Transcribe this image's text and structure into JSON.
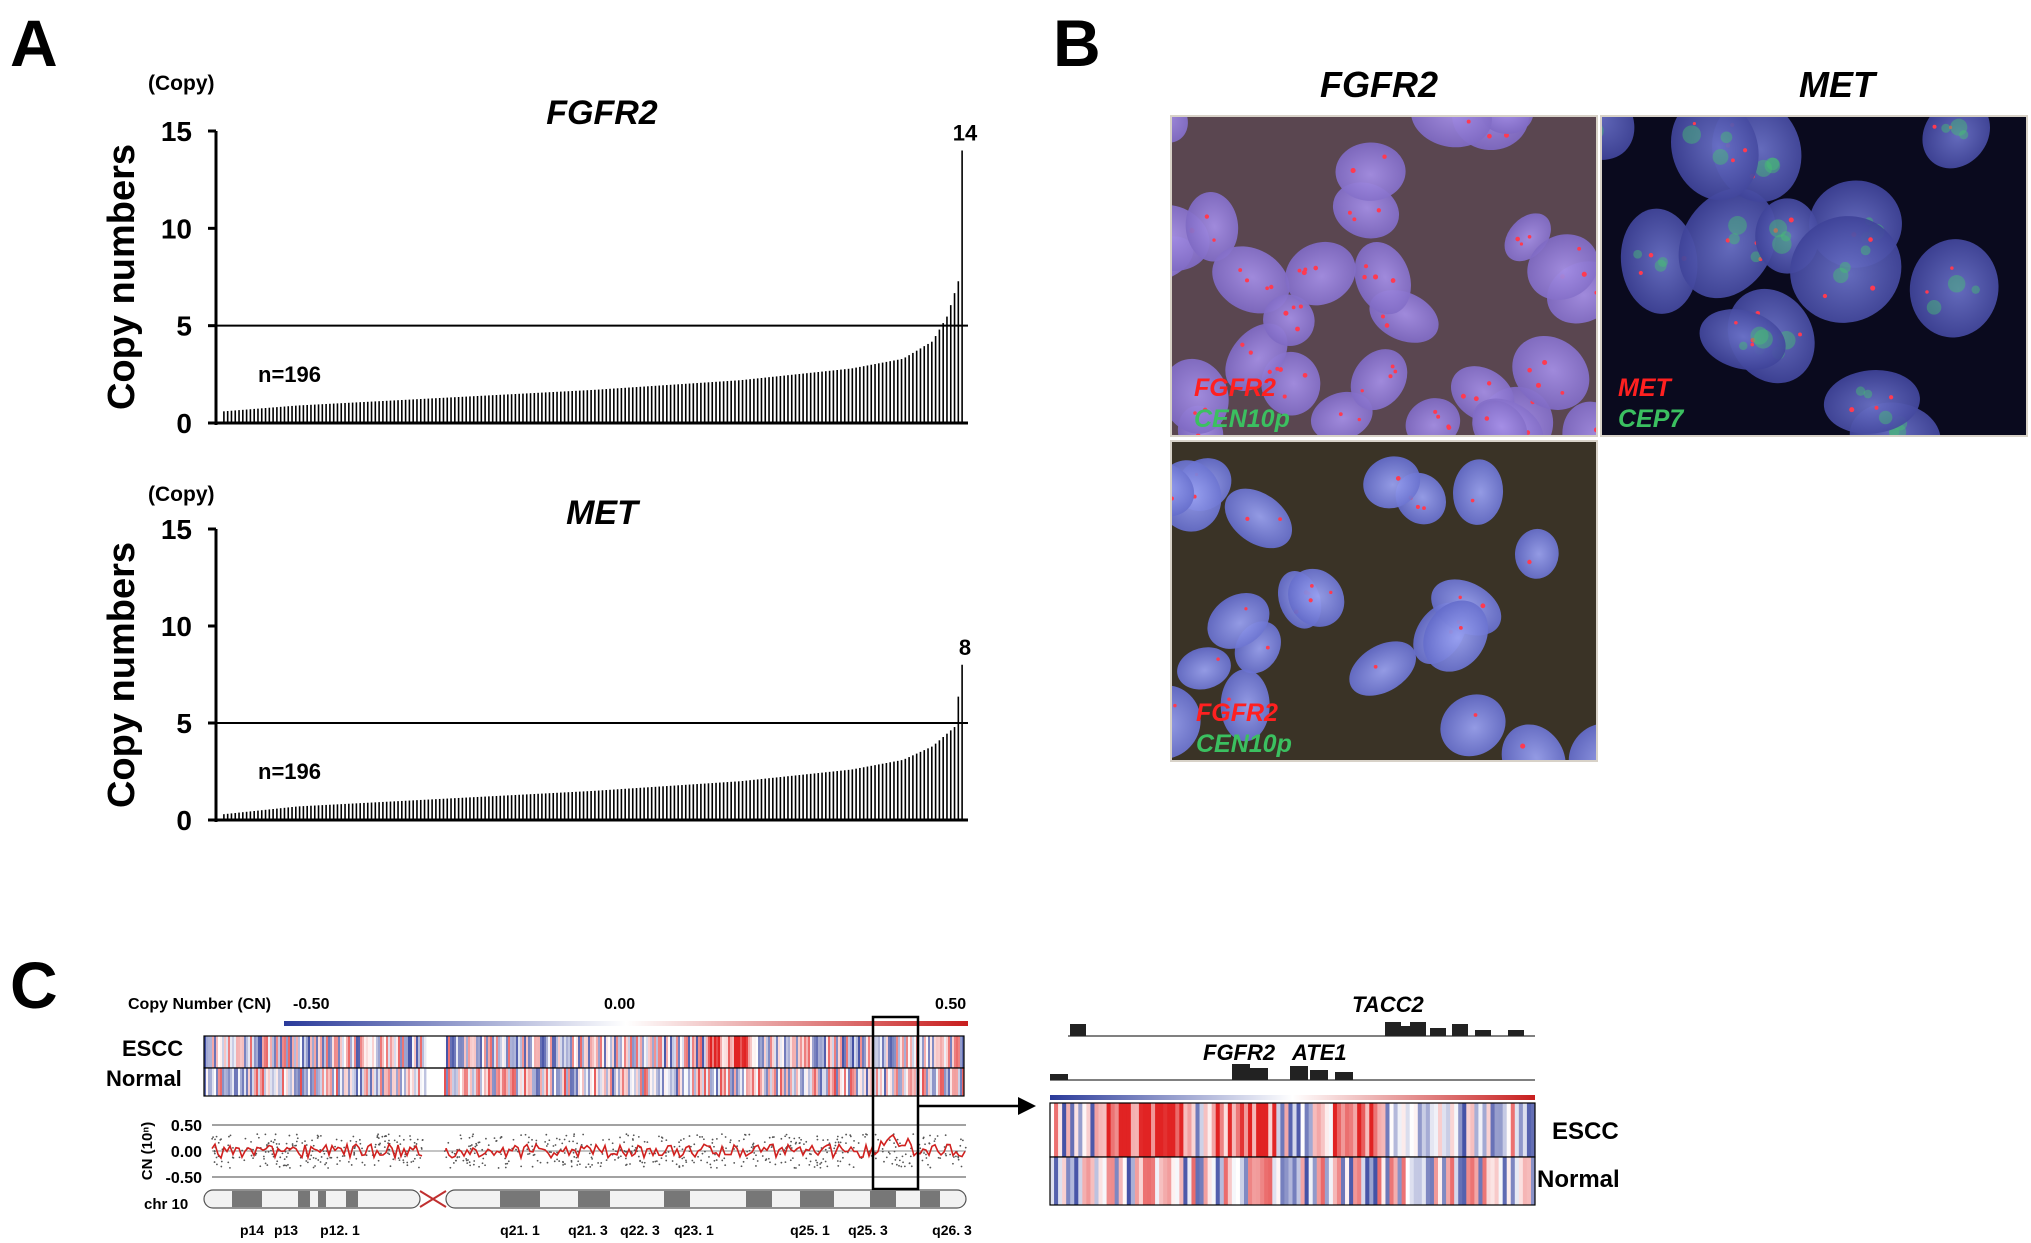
{
  "panels": {
    "a": {
      "letter": "A"
    },
    "b": {
      "letter": "B"
    },
    "c": {
      "letter": "C"
    }
  },
  "chart_data": [
    {
      "type": "bar",
      "title": "FGFR2",
      "unit": "(Copy)",
      "ylabel": "Copy numbers",
      "ylim": [
        0,
        15
      ],
      "yticks": [
        "15",
        "10",
        "5",
        "0"
      ],
      "threshold": 5,
      "annotation": "n=196",
      "max_label": "14",
      "n_samples": 196,
      "curve_points": [
        [
          0,
          0.6
        ],
        [
          0.1,
          0.9
        ],
        [
          0.3,
          1.3
        ],
        [
          0.5,
          1.7
        ],
        [
          0.7,
          2.2
        ],
        [
          0.85,
          2.8
        ],
        [
          0.92,
          3.3
        ],
        [
          0.96,
          4.2
        ],
        [
          0.98,
          5.5
        ],
        [
          0.995,
          7.3
        ],
        [
          1.0,
          14
        ]
      ]
    },
    {
      "type": "bar",
      "title": "MET",
      "unit": "(Copy)",
      "ylabel": "Copy numbers",
      "ylim": [
        0,
        15
      ],
      "yticks": [
        "15",
        "10",
        "5",
        "0"
      ],
      "threshold": 5,
      "annotation": "n=196",
      "max_label": "8",
      "n_samples": 196,
      "curve_points": [
        [
          0,
          0.3
        ],
        [
          0.1,
          0.7
        ],
        [
          0.3,
          1.1
        ],
        [
          0.5,
          1.5
        ],
        [
          0.7,
          2.0
        ],
        [
          0.85,
          2.6
        ],
        [
          0.92,
          3.1
        ],
        [
          0.96,
          3.8
        ],
        [
          0.99,
          4.8
        ],
        [
          1.0,
          8
        ]
      ]
    }
  ],
  "fish": {
    "col_headers": [
      "FGFR2",
      "MET"
    ],
    "panels": [
      {
        "probe_red": "FGFR2",
        "probe_green": "CEN10p"
      },
      {
        "probe_red": "MET",
        "probe_green": "CEP7"
      },
      {
        "probe_red": "FGFR2",
        "probe_green": "CEN10p"
      }
    ]
  },
  "panel_c": {
    "cn_scale_label": "Copy Number (CN)",
    "cn_scale_ticks": [
      "-0.50",
      "0.00",
      "0.50"
    ],
    "rows": [
      "ESCC",
      "Normal"
    ],
    "cn_axis_label": "CN (10ⁿ)",
    "cn_axis_ticks": [
      "0.50",
      "0.00",
      "-0.50"
    ],
    "chromosome": "chr 10",
    "bands": [
      "p14",
      "p13",
      "p12. 1",
      "q21. 1",
      "q21. 3",
      "q22. 3",
      "q23. 1",
      "q25. 1",
      "q25. 3",
      "q26. 3"
    ],
    "genes": [
      "TACC2",
      "FGFR2",
      "ATE1"
    ],
    "zoom_rows": [
      "ESCC",
      "Normal"
    ]
  },
  "colors": {
    "bar": "#000000",
    "heat_red": "#e0141e",
    "heat_blue": "#2a3a9a",
    "fish_red": "#ff2020",
    "fish_green": "#3bc060"
  }
}
